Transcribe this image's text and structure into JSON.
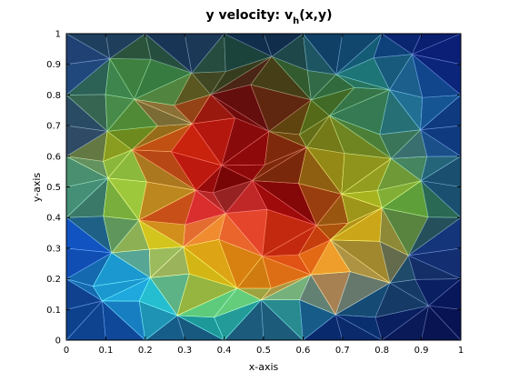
{
  "chart_data": {
    "type": "heatmap",
    "title_main": "y velocity: v",
    "title_sub": "h",
    "title_rest": "(x,y)",
    "xlabel": "x-axis",
    "ylabel": "y-axis",
    "xlim": [
      0,
      1
    ],
    "ylim": [
      0,
      1
    ],
    "xticks": [
      "0",
      "0.1",
      "0.2",
      "0.3",
      "0.4",
      "0.5",
      "0.6",
      "0.7",
      "0.8",
      "0.9",
      "1"
    ],
    "yticks": [
      "0",
      "0.1",
      "0.2",
      "0.3",
      "0.4",
      "0.5",
      "0.6",
      "0.7",
      "0.8",
      "0.9",
      "1"
    ],
    "grid": false,
    "mesh": "unstructured triangular, faceted shading",
    "colormap": "rgb shading per element",
    "nodes": [
      [
        0.0,
        0.0
      ],
      [
        0.1,
        0.0
      ],
      [
        0.2,
        0.0
      ],
      [
        0.3,
        0.0
      ],
      [
        0.4,
        0.0
      ],
      [
        0.5,
        0.0
      ],
      [
        0.6,
        0.0
      ],
      [
        0.7,
        0.0
      ],
      [
        0.8,
        0.0
      ],
      [
        0.9,
        0.0
      ],
      [
        1.0,
        0.0
      ],
      [
        0.0,
        0.1
      ],
      [
        0.1,
        0.1
      ],
      [
        0.2,
        0.1
      ],
      [
        0.3,
        0.1
      ],
      [
        0.4,
        0.1
      ],
      [
        0.5,
        0.1
      ],
      [
        0.6,
        0.1
      ],
      [
        0.7,
        0.1
      ],
      [
        0.8,
        0.1
      ],
      [
        0.9,
        0.1
      ],
      [
        1.0,
        0.1
      ],
      [
        0.0,
        0.2
      ],
      [
        0.1,
        0.2
      ],
      [
        0.2,
        0.2
      ],
      [
        0.3,
        0.2
      ],
      [
        0.4,
        0.2
      ],
      [
        0.5,
        0.2
      ],
      [
        0.6,
        0.2
      ],
      [
        0.7,
        0.2
      ],
      [
        0.8,
        0.2
      ],
      [
        0.9,
        0.2
      ],
      [
        1.0,
        0.2
      ],
      [
        0.0,
        0.3
      ],
      [
        0.1,
        0.3
      ],
      [
        0.2,
        0.3
      ],
      [
        0.3,
        0.3
      ],
      [
        0.4,
        0.3
      ],
      [
        0.5,
        0.3
      ],
      [
        0.6,
        0.3
      ],
      [
        0.7,
        0.3
      ],
      [
        0.8,
        0.3
      ],
      [
        0.9,
        0.3
      ],
      [
        1.0,
        0.3
      ],
      [
        0.0,
        0.4
      ],
      [
        0.1,
        0.4
      ],
      [
        0.2,
        0.4
      ],
      [
        0.3,
        0.4
      ],
      [
        0.4,
        0.4
      ],
      [
        0.5,
        0.4
      ],
      [
        0.6,
        0.4
      ],
      [
        0.7,
        0.4
      ],
      [
        0.8,
        0.4
      ],
      [
        0.9,
        0.4
      ],
      [
        1.0,
        0.4
      ],
      [
        0.0,
        0.5
      ],
      [
        0.1,
        0.5
      ],
      [
        0.2,
        0.5
      ],
      [
        0.3,
        0.5
      ],
      [
        0.4,
        0.5
      ],
      [
        0.5,
        0.5
      ],
      [
        0.6,
        0.5
      ],
      [
        0.7,
        0.5
      ],
      [
        0.8,
        0.5
      ],
      [
        0.9,
        0.5
      ],
      [
        1.0,
        0.5
      ],
      [
        0.0,
        0.6
      ],
      [
        0.1,
        0.6
      ],
      [
        0.2,
        0.6
      ],
      [
        0.3,
        0.6
      ],
      [
        0.4,
        0.6
      ],
      [
        0.5,
        0.6
      ],
      [
        0.6,
        0.6
      ],
      [
        0.7,
        0.6
      ],
      [
        0.8,
        0.6
      ],
      [
        0.9,
        0.6
      ],
      [
        1.0,
        0.6
      ],
      [
        0.0,
        0.7
      ],
      [
        0.1,
        0.7
      ],
      [
        0.2,
        0.7
      ],
      [
        0.3,
        0.7
      ],
      [
        0.4,
        0.7
      ],
      [
        0.5,
        0.7
      ],
      [
        0.6,
        0.7
      ],
      [
        0.7,
        0.7
      ],
      [
        0.8,
        0.7
      ],
      [
        0.9,
        0.7
      ],
      [
        1.0,
        0.7
      ],
      [
        0.0,
        0.8
      ],
      [
        0.1,
        0.8
      ],
      [
        0.2,
        0.8
      ],
      [
        0.3,
        0.8
      ],
      [
        0.4,
        0.8
      ],
      [
        0.5,
        0.8
      ],
      [
        0.6,
        0.8
      ],
      [
        0.7,
        0.8
      ],
      [
        0.8,
        0.8
      ],
      [
        0.9,
        0.8
      ],
      [
        1.0,
        0.8
      ],
      [
        0.0,
        0.9
      ],
      [
        0.1,
        0.9
      ],
      [
        0.2,
        0.9
      ],
      [
        0.3,
        0.9
      ],
      [
        0.4,
        0.9
      ],
      [
        0.5,
        0.9
      ],
      [
        0.6,
        0.9
      ],
      [
        0.7,
        0.9
      ],
      [
        0.8,
        0.9
      ],
      [
        0.9,
        0.9
      ],
      [
        1.0,
        0.9
      ],
      [
        0.0,
        1.0
      ],
      [
        0.1,
        1.0
      ],
      [
        0.2,
        1.0
      ],
      [
        0.3,
        1.0
      ],
      [
        0.4,
        1.0
      ],
      [
        0.5,
        1.0
      ],
      [
        0.6,
        1.0
      ],
      [
        0.7,
        1.0
      ],
      [
        0.8,
        1.0
      ],
      [
        0.9,
        1.0
      ],
      [
        1.0,
        1.0
      ]
    ],
    "color_grid": [
      [
        "#061a6e",
        "#0a2a8a",
        "#071566",
        "#0a1e72",
        "#0b1f6a",
        "#0a1c60",
        "#0a1d62",
        "#0a2a6a",
        "#0b2d74",
        "#0b1b66",
        "#081870"
      ],
      [
        "#1030c8",
        "#4a7a22",
        "#2f6b2c",
        "#3b6b2a",
        "#2c5a2c",
        "#1d4e1e",
        "#2f6a5a",
        "#1e7a6a",
        "#136a80",
        "#0b2a76",
        "#0a1a7a"
      ],
      [
        "#0a2e8a",
        "#2f7a55",
        "#3f9a6e",
        "#7a8a25",
        "#5a1010",
        "#6a1212",
        "#4a5a14",
        "#2c6a3a",
        "#2a7a7a",
        "#1e7ab4",
        "#0a2a7a"
      ],
      [
        "#0a2a8a",
        "#6a8a18",
        "#4a7a20",
        "#e83010",
        "#8a0a0a",
        "#6a0808",
        "#6a6a12",
        "#4a7a22",
        "#2c7a5a",
        "#1a5a8a",
        "#0a2a7a"
      ],
      [
        "#1a2a8a",
        "#a8b428",
        "#909a20",
        "#cc2a0a",
        "#a60c0c",
        "#9a0a0a",
        "#7a6a12",
        "#9a8a18",
        "#6a8a28",
        "#2a6a9a",
        "#0a2a7a"
      ],
      [
        "#5aaa5a",
        "#6ad86a",
        "#a8b828",
        "#c81414",
        "#5a0202",
        "#6a0404",
        "#8a0a0a",
        "#a8a818",
        "#a8a820",
        "#3a9a5a",
        "#0a2a7a"
      ],
      [
        "#0a2aa0",
        "#3a6a2a",
        "#c8c820",
        "#c81414",
        "#ff6060",
        "#d81010",
        "#9a0a0a",
        "#8a5010",
        "#a8c828",
        "#3a7a2a",
        "#0a2a7a"
      ],
      [
        "#1040d8",
        "#1a90c8",
        "#c8b818",
        "#e8d020",
        "#e87010",
        "#d86010",
        "#d81010",
        "#e0a010",
        "#d88a10",
        "#2a4a6a",
        "#0a2a8a"
      ],
      [
        "#0a1a7a",
        "#1a90c8",
        "#20a8e0",
        "#c8a010",
        "#c8b010",
        "#d06010",
        "#f08a20",
        "#ffb050",
        "#2a6a6a",
        "#0a2a6a",
        "#081a60"
      ],
      [
        "#0a1a6a",
        "#1a90c8",
        "#20c0f0",
        "#30d0a0",
        "#20e0c0",
        "#40d8a0",
        "#30b0b0",
        "#0a4a8a",
        "#0a2a6a",
        "#0a1a5a",
        "#061050"
      ],
      [
        "#061a6e",
        "#0a1e7a",
        "#0a2a8a",
        "#0a1e72",
        "#0a1c6a",
        "#0a1e6a",
        "#0a1a60",
        "#0a1a60",
        "#0a1a5a",
        "#0a1650",
        "#061050"
      ]
    ]
  }
}
